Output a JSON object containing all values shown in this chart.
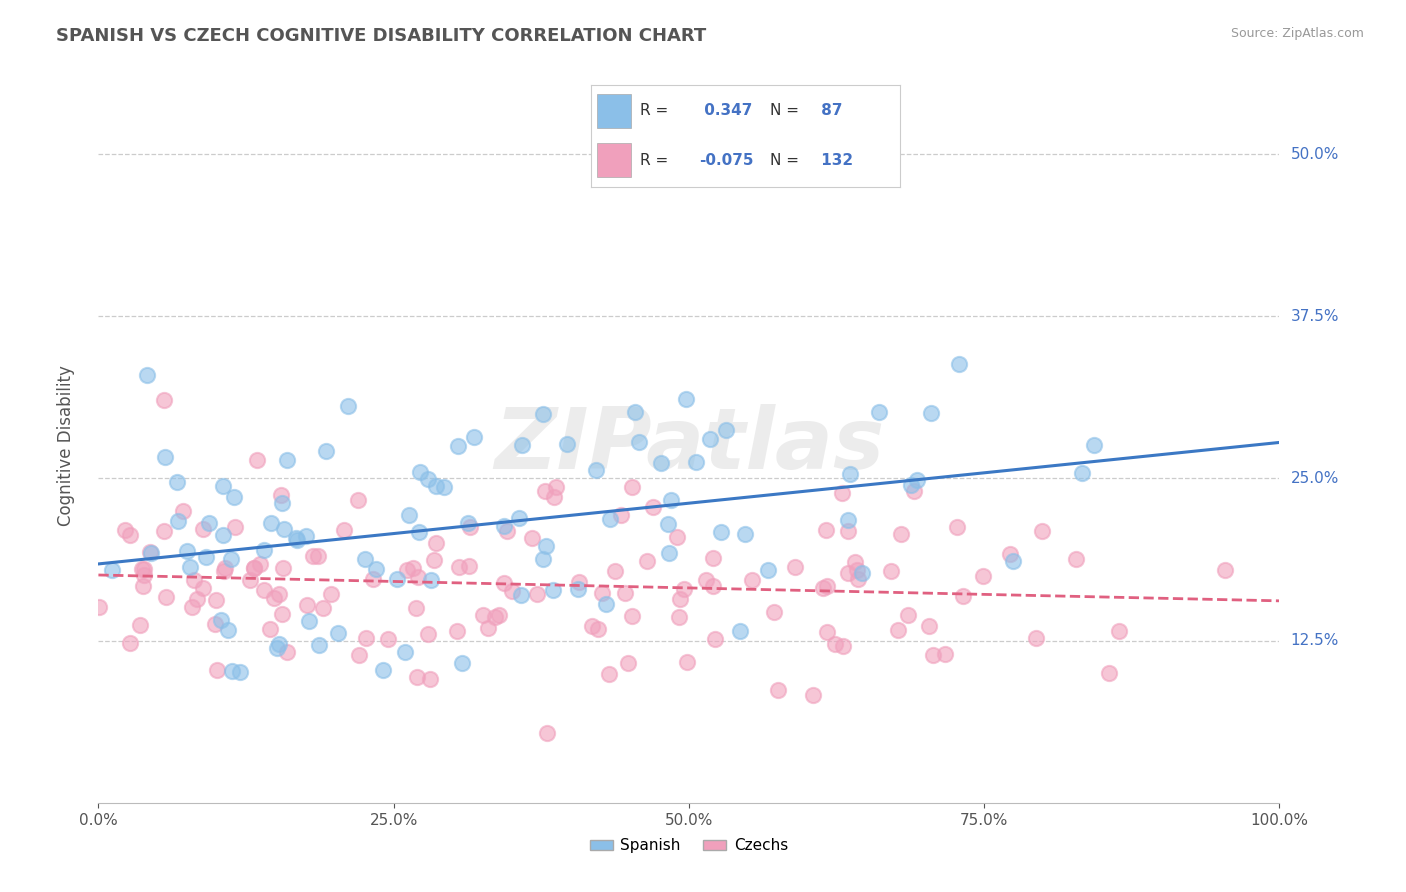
{
  "title": "SPANISH VS CZECH COGNITIVE DISABILITY CORRELATION CHART",
  "source": "Source: ZipAtlas.com",
  "ylabel": "Cognitive Disability",
  "xlim": [
    0.0,
    1.0
  ],
  "ylim": [
    0.0,
    0.55
  ],
  "xticks": [
    0.0,
    0.25,
    0.5,
    0.75,
    1.0
  ],
  "xtick_labels": [
    "0.0%",
    "25.0%",
    "50.0%",
    "75.0%",
    "100.0%"
  ],
  "ytick_labels": [
    "12.5%",
    "25.0%",
    "37.5%",
    "50.0%"
  ],
  "ytick_values": [
    0.125,
    0.25,
    0.375,
    0.5
  ],
  "spanish_color": "#8BBFE8",
  "czech_color": "#F0A0BC",
  "spanish_line_color": "#3B78C4",
  "czech_line_color": "#E06080",
  "R_spanish": 0.347,
  "N_spanish": 87,
  "R_czech": -0.075,
  "N_czech": 132,
  "background_color": "#FFFFFF",
  "grid_color": "#CCCCCC",
  "title_color": "#555555",
  "label_color": "#555555",
  "stat_color": "#4472C4",
  "watermark": "ZIPatlas",
  "legend_labels": [
    "Spanish",
    "Czechs"
  ]
}
